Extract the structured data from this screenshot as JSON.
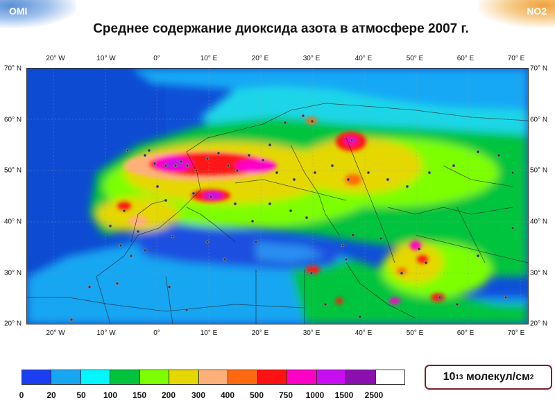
{
  "header": {
    "left_tag": "OMI",
    "right_tag": "NO2",
    "title": "Среднее содержание диоксида азота в атмосфере 2007 г."
  },
  "map": {
    "lon_labels": [
      "20° W",
      "10° W",
      "0°",
      "10° E",
      "20° E",
      "30° E",
      "40° E",
      "50° E",
      "60° E",
      "70° E"
    ],
    "lat_labels": [
      "70° N",
      "60° N",
      "50° N",
      "40° N",
      "30° N",
      "20° N"
    ],
    "colors": {
      "ocean": "#0f4fd8",
      "low": "#19a8f5",
      "medium": "#00d53a",
      "high": "#ff2d1e",
      "peak": "#b300c8"
    }
  },
  "legend": {
    "colors": [
      "#1a3ef0",
      "#17a6f2",
      "#00f7ff",
      "#00c43d",
      "#7dff00",
      "#e5d700",
      "#ffb07a",
      "#ff6a10",
      "#ff1212",
      "#ff00c8",
      "#c80ef0",
      "#8a0fae",
      "#ffffff"
    ],
    "labels": [
      "0",
      "20",
      "50",
      "100",
      "150",
      "200",
      "300",
      "400",
      "500",
      "750",
      "1000",
      "1500",
      "2500"
    ],
    "units_base": "10",
    "units_exp": "13",
    "units_text": "молекул/см",
    "units_power": "2"
  }
}
